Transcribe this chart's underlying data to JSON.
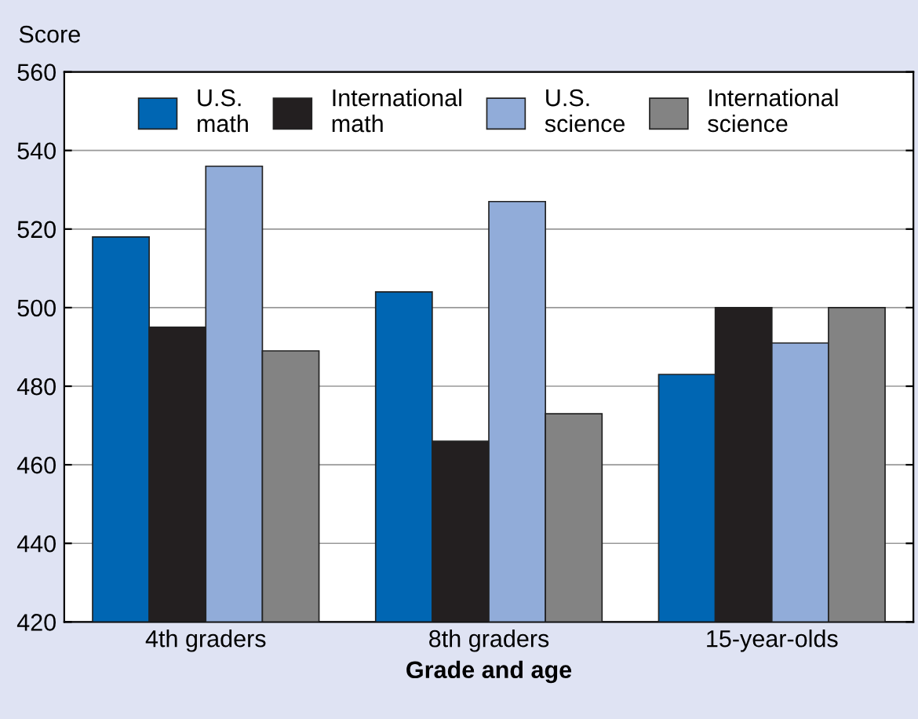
{
  "chart_data": {
    "type": "bar",
    "ylabel": "Score",
    "xlabel": "Grade and age",
    "categories": [
      "4th graders",
      "8th graders",
      "15-year-olds"
    ],
    "series": [
      {
        "name": "U.S.\nmath",
        "color": "#0066b3",
        "values": [
          518,
          504,
          483
        ]
      },
      {
        "name": "International\nmath",
        "color": "#231f20",
        "values": [
          495,
          466,
          500
        ]
      },
      {
        "name": "U.S.\nscience",
        "color": "#91acd9",
        "values": [
          536,
          527,
          491
        ]
      },
      {
        "name": "International\nscience",
        "color": "#838383",
        "values": [
          489,
          473,
          500
        ]
      }
    ],
    "ylim": [
      420,
      560
    ],
    "yticks": [
      420,
      440,
      460,
      480,
      500,
      520,
      540,
      560
    ],
    "grid": "y",
    "legend": "top"
  }
}
